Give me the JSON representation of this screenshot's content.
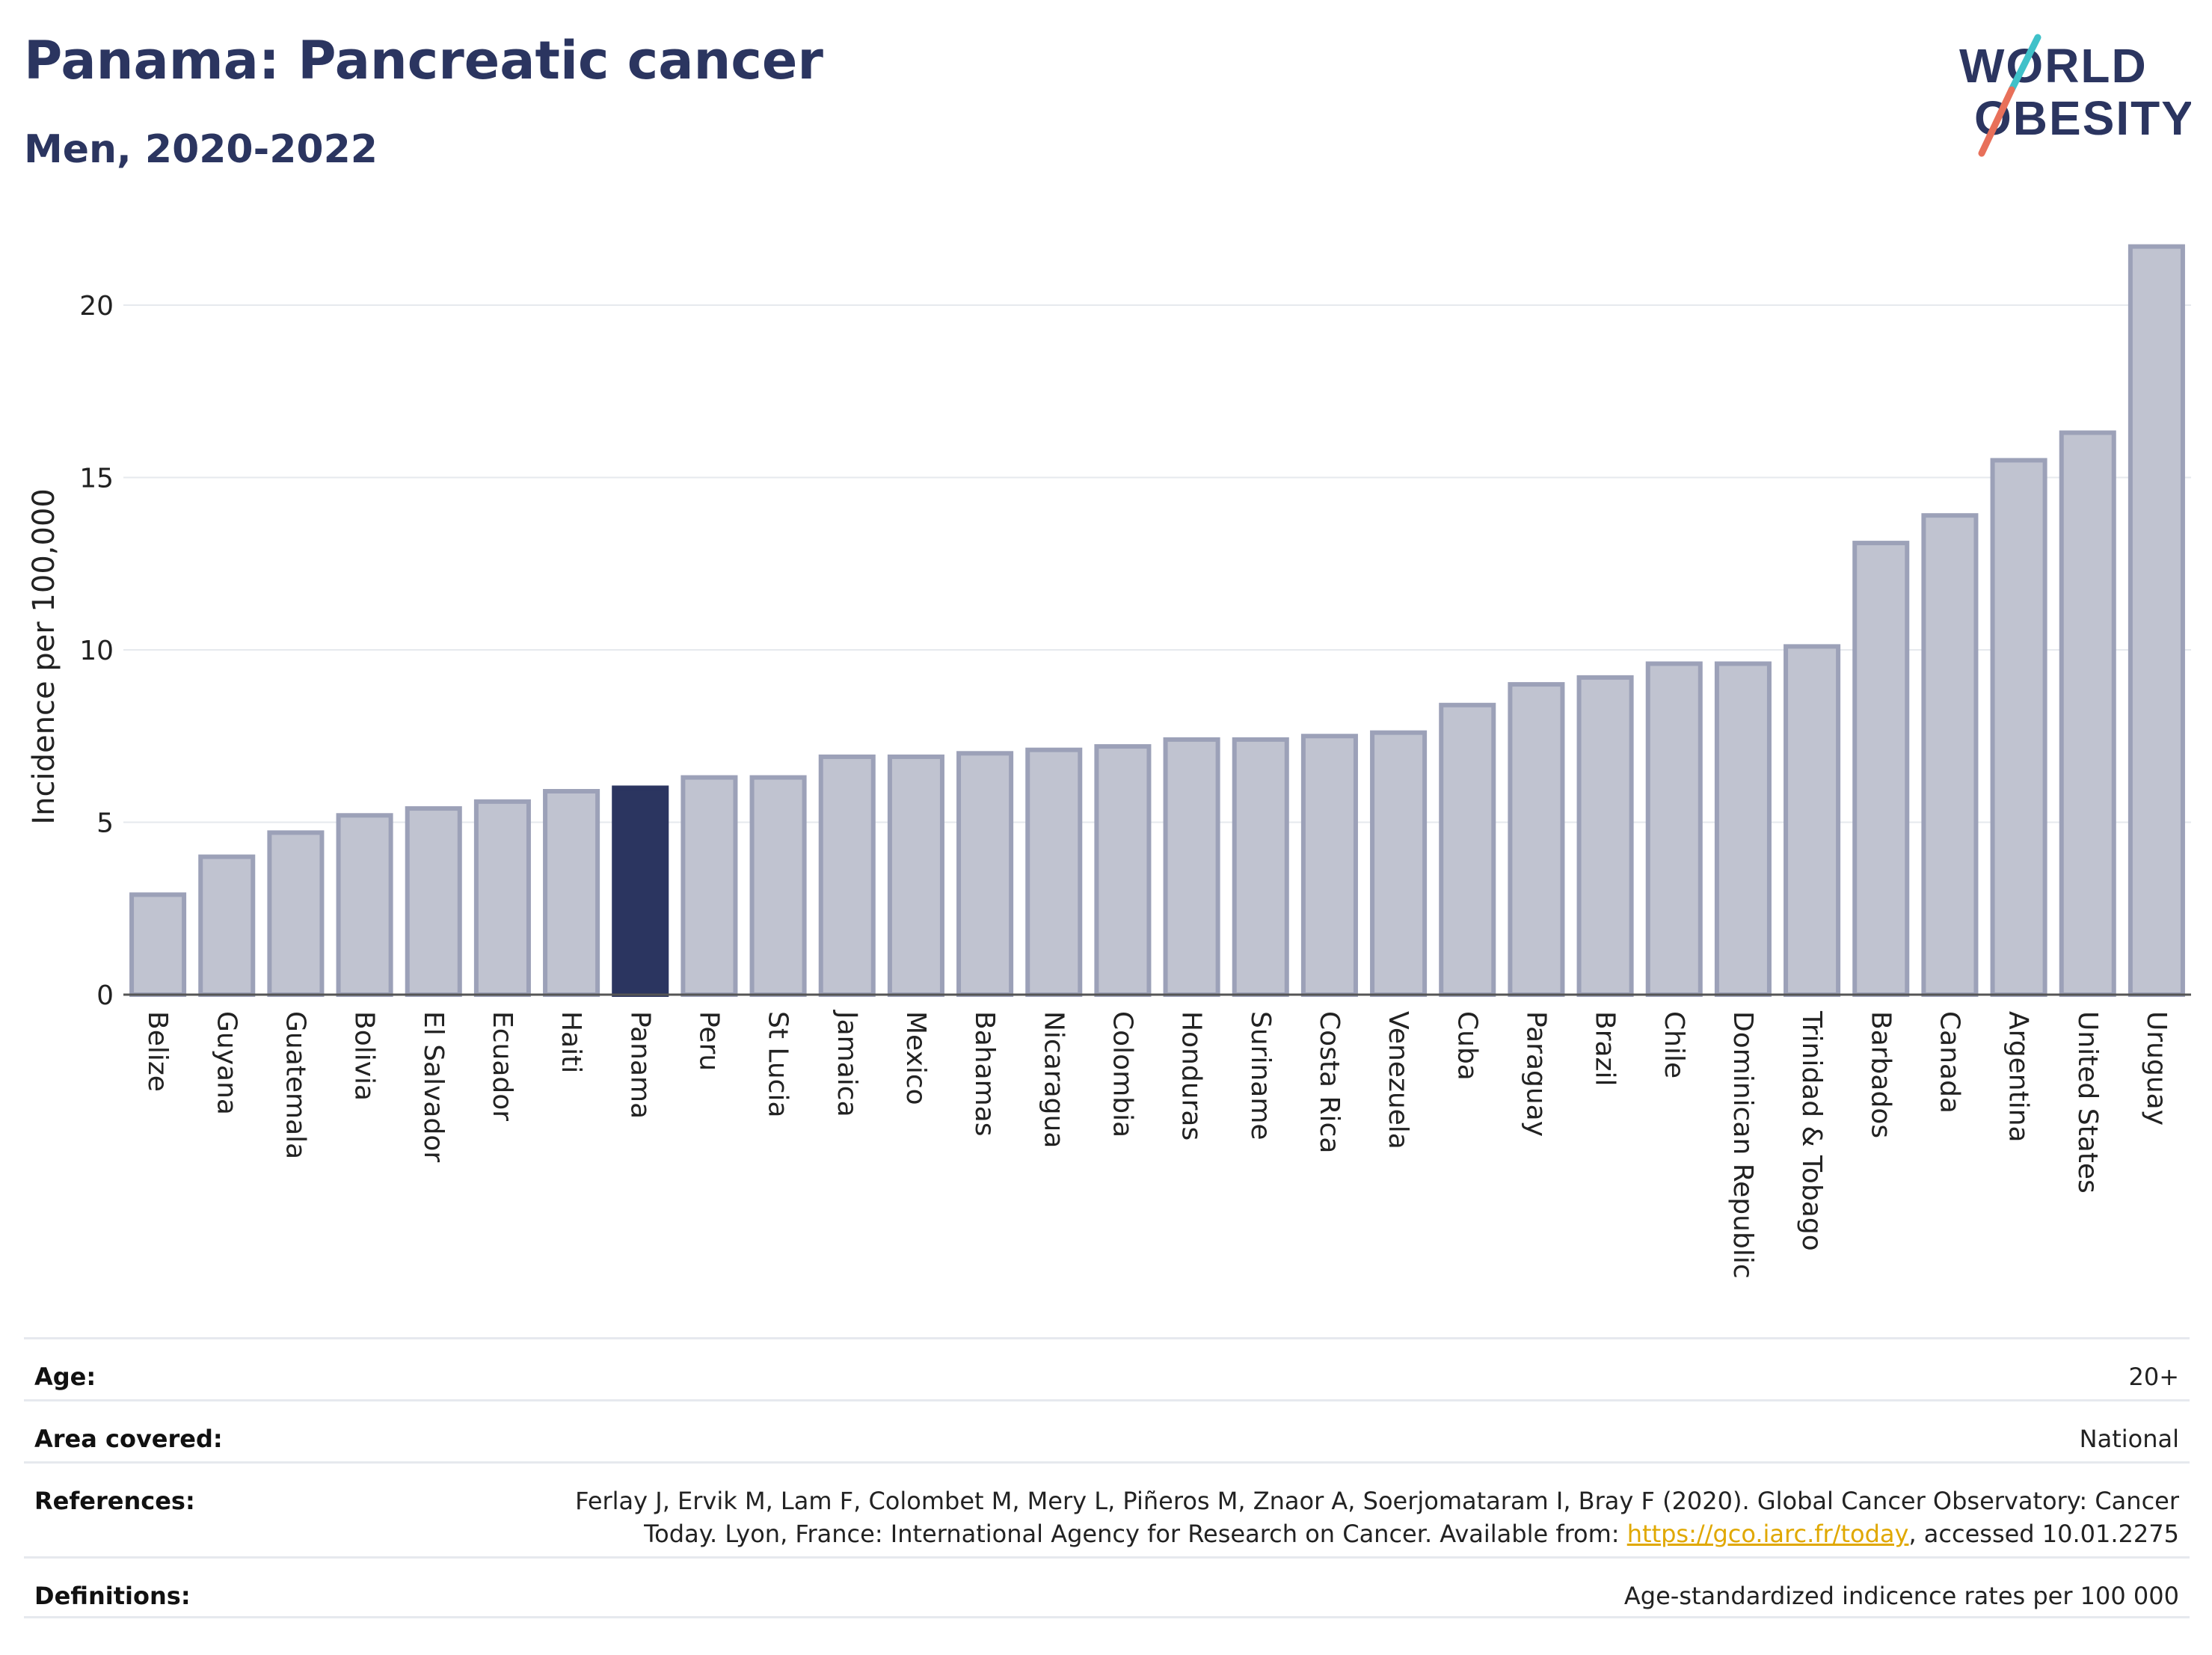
{
  "header": {
    "title": "Panama: Pancreatic cancer",
    "subtitle": "Men, 2020-2022"
  },
  "logo": {
    "text_line1": "WORLD",
    "text_line2": "OBESITY",
    "color_text": "#2b3560",
    "color_slash_top": "#3fc1c9",
    "color_slash_bottom": "#e8705a"
  },
  "colors": {
    "bar": "#c0c3d0",
    "bar_stroke": "#9ca1b8",
    "highlight": "#2b3560",
    "grid": "#e6e9ee",
    "link": "#e0a800"
  },
  "chart_data": {
    "type": "bar",
    "title": "",
    "xlabel": "",
    "ylabel": "Incidence per 100,000",
    "ylim": [
      0,
      22
    ],
    "yticks": [
      0,
      5,
      10,
      15,
      20
    ],
    "grid": true,
    "highlight": "Panama",
    "categories": [
      "Belize",
      "Guyana",
      "Guatemala",
      "Bolivia",
      "El Salvador",
      "Ecuador",
      "Haiti",
      "Panama",
      "Peru",
      "St Lucia",
      "Jamaica",
      "Mexico",
      "Bahamas",
      "Nicaragua",
      "Colombia",
      "Honduras",
      "Suriname",
      "Costa Rica",
      "Venezuela",
      "Cuba",
      "Paraguay",
      "Brazil",
      "Chile",
      "Dominican Republic",
      "Trinidad & Tobago",
      "Barbados",
      "Canada",
      "Argentina",
      "United States",
      "Uruguay"
    ],
    "values": [
      2.9,
      4.0,
      4.7,
      5.2,
      5.4,
      5.6,
      5.9,
      6.0,
      6.3,
      6.3,
      6.9,
      6.9,
      7.0,
      7.1,
      7.2,
      7.4,
      7.4,
      7.5,
      7.6,
      8.4,
      9.0,
      9.2,
      9.6,
      9.6,
      10.1,
      13.1,
      13.9,
      15.5,
      16.3,
      21.7
    ]
  },
  "meta": {
    "age_label": "Age:",
    "age_value": "20+",
    "area_label": "Area covered:",
    "area_value": "National",
    "references_label": "References:",
    "references_text_1": "Ferlay J, Ervik M, Lam F, Colombet M, Mery L, Piñeros M, Znaor A, Soerjomataram I, Bray F (2020). Global Cancer Observatory: Cancer",
    "references_text_2": "Today. Lyon, France: International Agency for Research on Cancer. Available from: ",
    "references_link": "https://gco.iarc.fr/today",
    "references_text_3": ", accessed 10.01.2275",
    "definitions_label": "Definitions:",
    "definitions_value": "Age-standardized indicence rates per 100 000"
  }
}
